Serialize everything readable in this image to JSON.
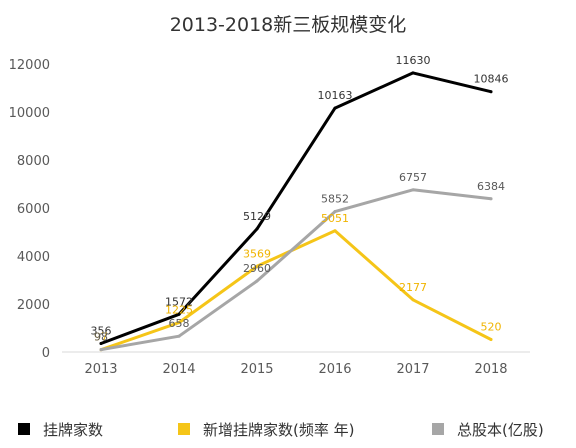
{
  "chart_data": {
    "type": "line",
    "title": "2013-2018新三板规模变化",
    "xlabel": "",
    "ylabel": "",
    "categories": [
      "2013",
      "2014",
      "2015",
      "2016",
      "2017",
      "2018"
    ],
    "ylim": [
      0,
      12000
    ],
    "yticks": [
      0,
      2000,
      4000,
      6000,
      8000,
      10000,
      12000
    ],
    "grid": false,
    "legend_position": "bottom",
    "series": [
      {
        "name": "挂牌家数",
        "color": "#000000",
        "label_color": "#333333",
        "values": [
          356,
          1572,
          5129,
          10163,
          11630,
          10846
        ]
      },
      {
        "name": "新增挂牌家数(频率 年)",
        "color": "#F5C518",
        "label_color": "#F0B400",
        "values": [
          97,
          1225,
          3569,
          5051,
          2177,
          520
        ]
      },
      {
        "name": "总股本(亿股)",
        "color": "#A6A6A6",
        "label_color": "#595959",
        "values": [
          98,
          658,
          2960,
          5852,
          6757,
          6384
        ]
      }
    ]
  }
}
